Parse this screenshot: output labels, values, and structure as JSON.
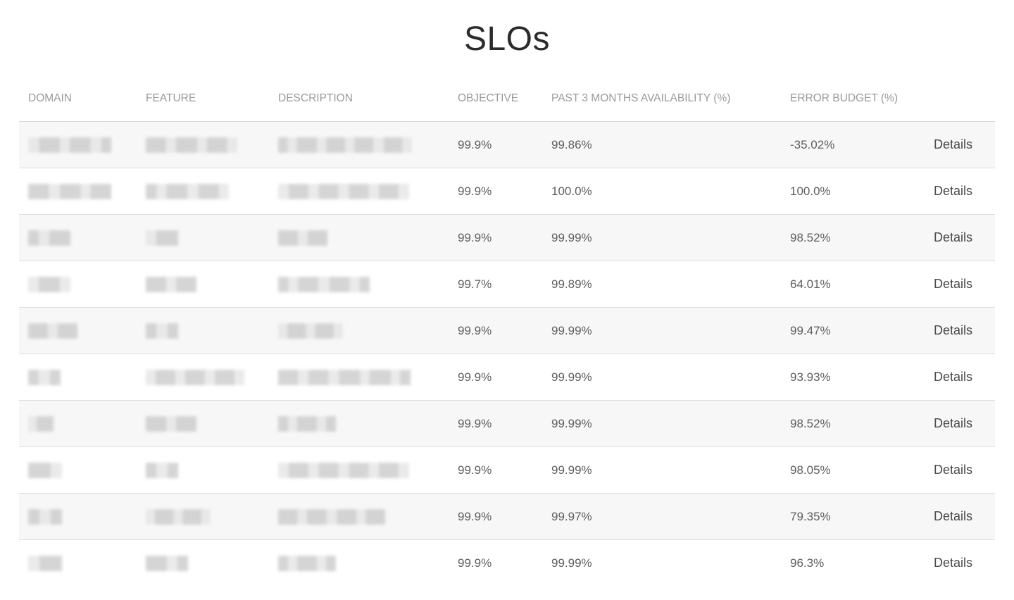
{
  "title": "SLOs",
  "colors": {
    "bad_value": "#f0506e",
    "redacted_dark": "#c8c8c8",
    "redacted_light": "#e4e4e4"
  },
  "table": {
    "headers": {
      "domain": "DOMAIN",
      "feature": "FEATURE",
      "description": "DESCRIPTION",
      "objective": "OBJECTIVE",
      "availability": "PAST 3 MONTHS AVAILABILITY (%)",
      "error_budget": "ERROR BUDGET (%)"
    },
    "rows": [
      {
        "objective": "99.9%",
        "availability": "99.86%",
        "error_budget": "-35.02%",
        "details": "Details",
        "bad": true
      },
      {
        "objective": "99.9%",
        "availability": "100.0%",
        "error_budget": "100.0%",
        "details": "Details",
        "bad": false
      },
      {
        "objective": "99.9%",
        "availability": "99.99%",
        "error_budget": "98.52%",
        "details": "Details",
        "bad": false
      },
      {
        "objective": "99.7%",
        "availability": "99.89%",
        "error_budget": "64.01%",
        "details": "Details",
        "bad": false
      },
      {
        "objective": "99.9%",
        "availability": "99.99%",
        "error_budget": "99.47%",
        "details": "Details",
        "bad": false
      },
      {
        "objective": "99.9%",
        "availability": "99.99%",
        "error_budget": "93.93%",
        "details": "Details",
        "bad": false
      },
      {
        "objective": "99.9%",
        "availability": "99.99%",
        "error_budget": "98.52%",
        "details": "Details",
        "bad": false
      },
      {
        "objective": "99.9%",
        "availability": "99.99%",
        "error_budget": "98.05%",
        "details": "Details",
        "bad": false
      },
      {
        "objective": "99.9%",
        "availability": "99.97%",
        "error_budget": "79.35%",
        "details": "Details",
        "bad": false
      },
      {
        "objective": "99.9%",
        "availability": "99.99%",
        "error_budget": "96.3%",
        "details": "Details",
        "bad": false
      }
    ]
  }
}
